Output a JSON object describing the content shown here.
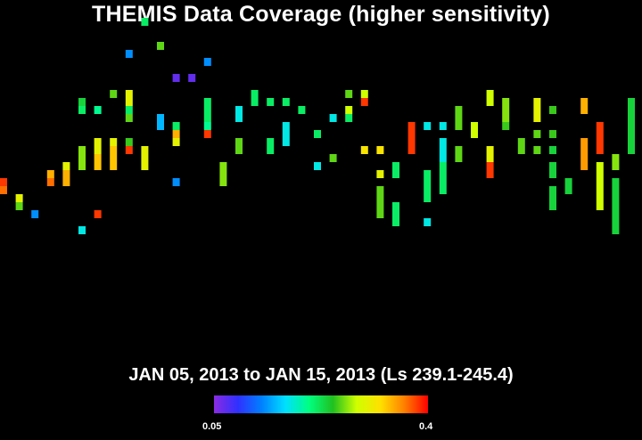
{
  "title": "THEMIS Data Coverage (higher sensitivity)",
  "chart_data": {
    "type": "heatmap",
    "title": "THEMIS Data Coverage (higher sensitivity)",
    "subtitle": "JAN 05, 2013 to JAN 15, 2013 (Ls 239.1-245.4)",
    "colorbar": {
      "min_label": "0.05",
      "max_label": "0.4",
      "min": 0.05,
      "max": 0.4
    },
    "cells": [
      [
        0,
        40,
        0.4
      ],
      [
        0,
        41,
        0.38
      ],
      [
        1,
        42,
        0.3
      ],
      [
        1,
        43,
        0.25
      ],
      [
        2,
        44,
        0.1
      ],
      [
        3,
        39,
        0.35
      ],
      [
        3,
        40,
        0.38
      ],
      [
        4,
        38,
        0.3
      ],
      [
        4,
        39,
        0.35
      ],
      [
        4,
        40,
        0.35
      ],
      [
        5,
        30,
        0.22
      ],
      [
        5,
        31,
        0.2
      ],
      [
        5,
        36,
        0.26
      ],
      [
        5,
        37,
        0.26
      ],
      [
        5,
        38,
        0.26
      ],
      [
        5,
        46,
        0.15
      ],
      [
        6,
        31,
        0.18
      ],
      [
        6,
        35,
        0.3
      ],
      [
        6,
        36,
        0.3
      ],
      [
        6,
        37,
        0.34
      ],
      [
        6,
        38,
        0.34
      ],
      [
        6,
        44,
        0.4
      ],
      [
        7,
        29,
        0.25
      ],
      [
        7,
        35,
        0.3
      ],
      [
        7,
        36,
        0.34
      ],
      [
        7,
        37,
        0.34
      ],
      [
        7,
        38,
        0.34
      ],
      [
        8,
        24,
        0.1
      ],
      [
        8,
        29,
        0.3
      ],
      [
        8,
        30,
        0.3
      ],
      [
        8,
        31,
        0.2
      ],
      [
        8,
        32,
        0.25
      ],
      [
        8,
        35,
        0.24
      ],
      [
        8,
        36,
        0.4
      ],
      [
        9,
        20,
        0.2
      ],
      [
        9,
        36,
        0.3
      ],
      [
        9,
        37,
        0.3
      ],
      [
        9,
        38,
        0.3
      ],
      [
        10,
        23,
        0.25
      ],
      [
        10,
        32,
        0.12
      ],
      [
        10,
        33,
        0.12
      ],
      [
        11,
        27,
        0.02
      ],
      [
        11,
        33,
        0.2
      ],
      [
        11,
        34,
        0.35
      ],
      [
        11,
        35,
        0.3
      ],
      [
        11,
        40,
        0.1
      ],
      [
        12,
        27,
        0.02
      ],
      [
        13,
        25,
        0.1
      ],
      [
        13,
        30,
        0.2
      ],
      [
        13,
        31,
        0.2
      ],
      [
        13,
        32,
        0.2
      ],
      [
        13,
        33,
        0.18
      ],
      [
        13,
        34,
        0.4
      ],
      [
        14,
        38,
        0.26
      ],
      [
        14,
        39,
        0.26
      ],
      [
        14,
        40,
        0.26
      ],
      [
        15,
        31,
        0.15
      ],
      [
        15,
        32,
        0.15
      ],
      [
        15,
        35,
        0.25
      ],
      [
        15,
        36,
        0.25
      ],
      [
        16,
        29,
        0.2
      ],
      [
        16,
        30,
        0.2
      ],
      [
        17,
        30,
        0.2
      ],
      [
        17,
        35,
        0.2
      ],
      [
        17,
        36,
        0.2
      ],
      [
        18,
        30,
        0.2
      ],
      [
        18,
        33,
        0.15
      ],
      [
        18,
        34,
        0.15
      ],
      [
        18,
        35,
        0.15
      ],
      [
        19,
        31,
        0.2
      ],
      [
        20,
        34,
        0.2
      ],
      [
        20,
        38,
        0.15
      ],
      [
        21,
        32,
        0.15
      ],
      [
        21,
        37,
        0.25
      ],
      [
        22,
        29,
        0.25
      ],
      [
        22,
        31,
        0.28
      ],
      [
        22,
        32,
        0.2
      ],
      [
        23,
        29,
        0.28
      ],
      [
        23,
        30,
        0.4
      ],
      [
        23,
        36,
        0.32
      ],
      [
        24,
        36,
        0.32
      ],
      [
        24,
        39,
        0.3
      ],
      [
        24,
        41,
        0.25
      ],
      [
        24,
        42,
        0.25
      ],
      [
        24,
        43,
        0.25
      ],
      [
        24,
        44,
        0.25
      ],
      [
        25,
        38,
        0.2
      ],
      [
        25,
        39,
        0.2
      ],
      [
        25,
        43,
        0.2
      ],
      [
        25,
        44,
        0.2
      ],
      [
        25,
        45,
        0.2
      ],
      [
        26,
        33,
        0.4
      ],
      [
        26,
        34,
        0.4
      ],
      [
        26,
        35,
        0.4
      ],
      [
        26,
        36,
        0.4
      ],
      [
        27,
        33,
        0.15
      ],
      [
        27,
        39,
        0.2
      ],
      [
        27,
        40,
        0.2
      ],
      [
        27,
        41,
        0.2
      ],
      [
        27,
        42,
        0.2
      ],
      [
        27,
        45,
        0.15
      ],
      [
        28,
        33,
        0.15
      ],
      [
        28,
        35,
        0.15
      ],
      [
        28,
        36,
        0.15
      ],
      [
        28,
        37,
        0.15
      ],
      [
        28,
        38,
        0.2
      ],
      [
        28,
        39,
        0.2
      ],
      [
        28,
        40,
        0.2
      ],
      [
        28,
        41,
        0.2
      ],
      [
        29,
        31,
        0.25
      ],
      [
        29,
        32,
        0.25
      ],
      [
        29,
        33,
        0.25
      ],
      [
        29,
        36,
        0.25
      ],
      [
        29,
        37,
        0.25
      ],
      [
        30,
        33,
        0.28
      ],
      [
        30,
        34,
        0.28
      ],
      [
        31,
        29,
        0.28
      ],
      [
        31,
        30,
        0.28
      ],
      [
        31,
        36,
        0.3
      ],
      [
        31,
        37,
        0.3
      ],
      [
        31,
        38,
        0.4
      ],
      [
        31,
        39,
        0.4
      ],
      [
        32,
        30,
        0.26
      ],
      [
        32,
        31,
        0.26
      ],
      [
        32,
        32,
        0.26
      ],
      [
        32,
        33,
        0.24
      ],
      [
        33,
        35,
        0.25
      ],
      [
        33,
        36,
        0.25
      ],
      [
        34,
        30,
        0.3
      ],
      [
        34,
        31,
        0.3
      ],
      [
        34,
        32,
        0.3
      ],
      [
        34,
        34,
        0.25
      ],
      [
        34,
        36,
        0.25
      ],
      [
        35,
        31,
        0.24
      ],
      [
        35,
        34,
        0.24
      ],
      [
        35,
        36,
        0.22
      ],
      [
        35,
        38,
        0.22
      ],
      [
        35,
        39,
        0.22
      ],
      [
        35,
        41,
        0.22
      ],
      [
        35,
        42,
        0.22
      ],
      [
        35,
        43,
        0.22
      ],
      [
        36,
        40,
        0.22
      ],
      [
        36,
        41,
        0.22
      ],
      [
        37,
        30,
        0.35
      ],
      [
        37,
        31,
        0.35
      ],
      [
        37,
        35,
        0.36
      ],
      [
        37,
        36,
        0.36
      ],
      [
        37,
        37,
        0.36
      ],
      [
        37,
        38,
        0.36
      ],
      [
        38,
        33,
        0.4
      ],
      [
        38,
        34,
        0.4
      ],
      [
        38,
        35,
        0.4
      ],
      [
        38,
        36,
        0.4
      ],
      [
        38,
        38,
        0.28
      ],
      [
        38,
        39,
        0.28
      ],
      [
        38,
        40,
        0.28
      ],
      [
        38,
        41,
        0.28
      ],
      [
        38,
        42,
        0.28
      ],
      [
        38,
        43,
        0.28
      ],
      [
        39,
        37,
        0.26
      ],
      [
        39,
        38,
        0.26
      ],
      [
        39,
        40,
        0.22
      ],
      [
        39,
        41,
        0.22
      ],
      [
        39,
        42,
        0.22
      ],
      [
        39,
        43,
        0.22
      ],
      [
        39,
        44,
        0.22
      ],
      [
        39,
        45,
        0.22
      ],
      [
        39,
        46,
        0.22
      ],
      [
        40,
        30,
        0.22
      ],
      [
        40,
        31,
        0.22
      ],
      [
        40,
        32,
        0.22
      ],
      [
        40,
        33,
        0.22
      ],
      [
        40,
        34,
        0.22
      ],
      [
        40,
        35,
        0.22
      ],
      [
        40,
        36,
        0.22
      ]
    ]
  }
}
